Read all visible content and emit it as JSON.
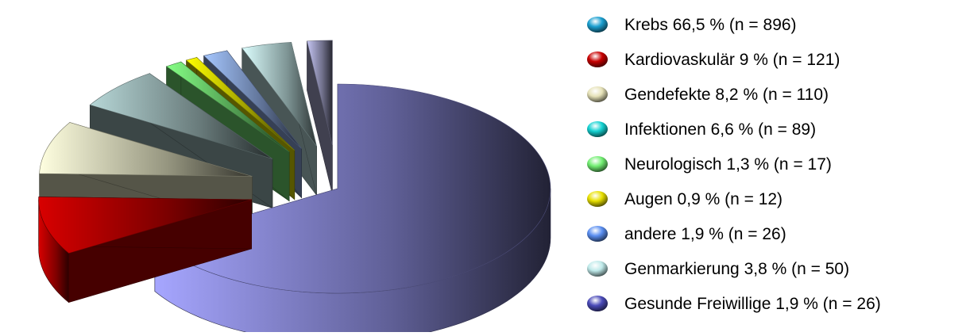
{
  "chart_data": {
    "type": "pie",
    "title": "",
    "legend_position": "right",
    "slices": [
      {
        "category": "Krebs",
        "label": "Krebs 66,5 % (n = 896)",
        "value": 66.5,
        "n": 896,
        "color": "#9a9af2"
      },
      {
        "category": "Kardiovaskulär",
        "label": "Kardiovaskulär 9 % (n = 121)",
        "value": 9,
        "n": 121,
        "color": "#c80000"
      },
      {
        "category": "Gendefekte",
        "label": "Gendefekte 8,2 % (n = 110)",
        "value": 8.2,
        "n": 110,
        "color": "#f2f2cf"
      },
      {
        "category": "Infektionen",
        "label": "Infektionen 6,6 % (n = 89)",
        "value": 6.6,
        "n": 89,
        "color": "#a9c7c7"
      },
      {
        "category": "Neurologisch",
        "label": "Neurologisch 1,3 % (n = 17)",
        "value": 1.3,
        "n": 17,
        "color": "#7cf07c"
      },
      {
        "category": "Augen",
        "label": "Augen 0,9 % (n = 12)",
        "value": 0.9,
        "n": 12,
        "color": "#f5f500"
      },
      {
        "category": "andere",
        "label": "andere 1,9 % (n = 26)",
        "value": 1.9,
        "n": 26,
        "color": "#9ab8f2"
      },
      {
        "category": "Genmarkierung",
        "label": "Genmarkierung 3,8 % (n = 50)",
        "value": 3.8,
        "n": 50,
        "color": "#cdf2f2"
      },
      {
        "category": "Gesunde Freiwillige",
        "label": "Gesunde Freiwillige 1,9 % (n = 26)",
        "value": 1.9,
        "n": 26,
        "color": "#b7b7e2"
      }
    ]
  },
  "legend": {
    "items": [
      {
        "label": "Krebs 66,5 % (n = 896)",
        "color": "#1a9fd0"
      },
      {
        "label": "Kardiovaskulär 9 % (n = 121)",
        "color": "#c80000"
      },
      {
        "label": "Gendefekte 8,2 % (n = 110)",
        "color": "#e6e2b8"
      },
      {
        "label": "Infektionen 6,6 % (n = 89)",
        "color": "#14d2d2"
      },
      {
        "label": "Neurologisch 1,3 % (n = 17)",
        "color": "#72ee72"
      },
      {
        "label": "Augen 0,9 % (n = 12)",
        "color": "#e8e000"
      },
      {
        "label": "andere 1,9 % (n = 26)",
        "color": "#5a8ef0"
      },
      {
        "label": "Genmarkierung 3,8 % (n = 50)",
        "color": "#bfeaea"
      },
      {
        "label": "Gesunde Freiwillige 1,9 % (n = 26)",
        "color": "#4a4ab8"
      }
    ]
  }
}
